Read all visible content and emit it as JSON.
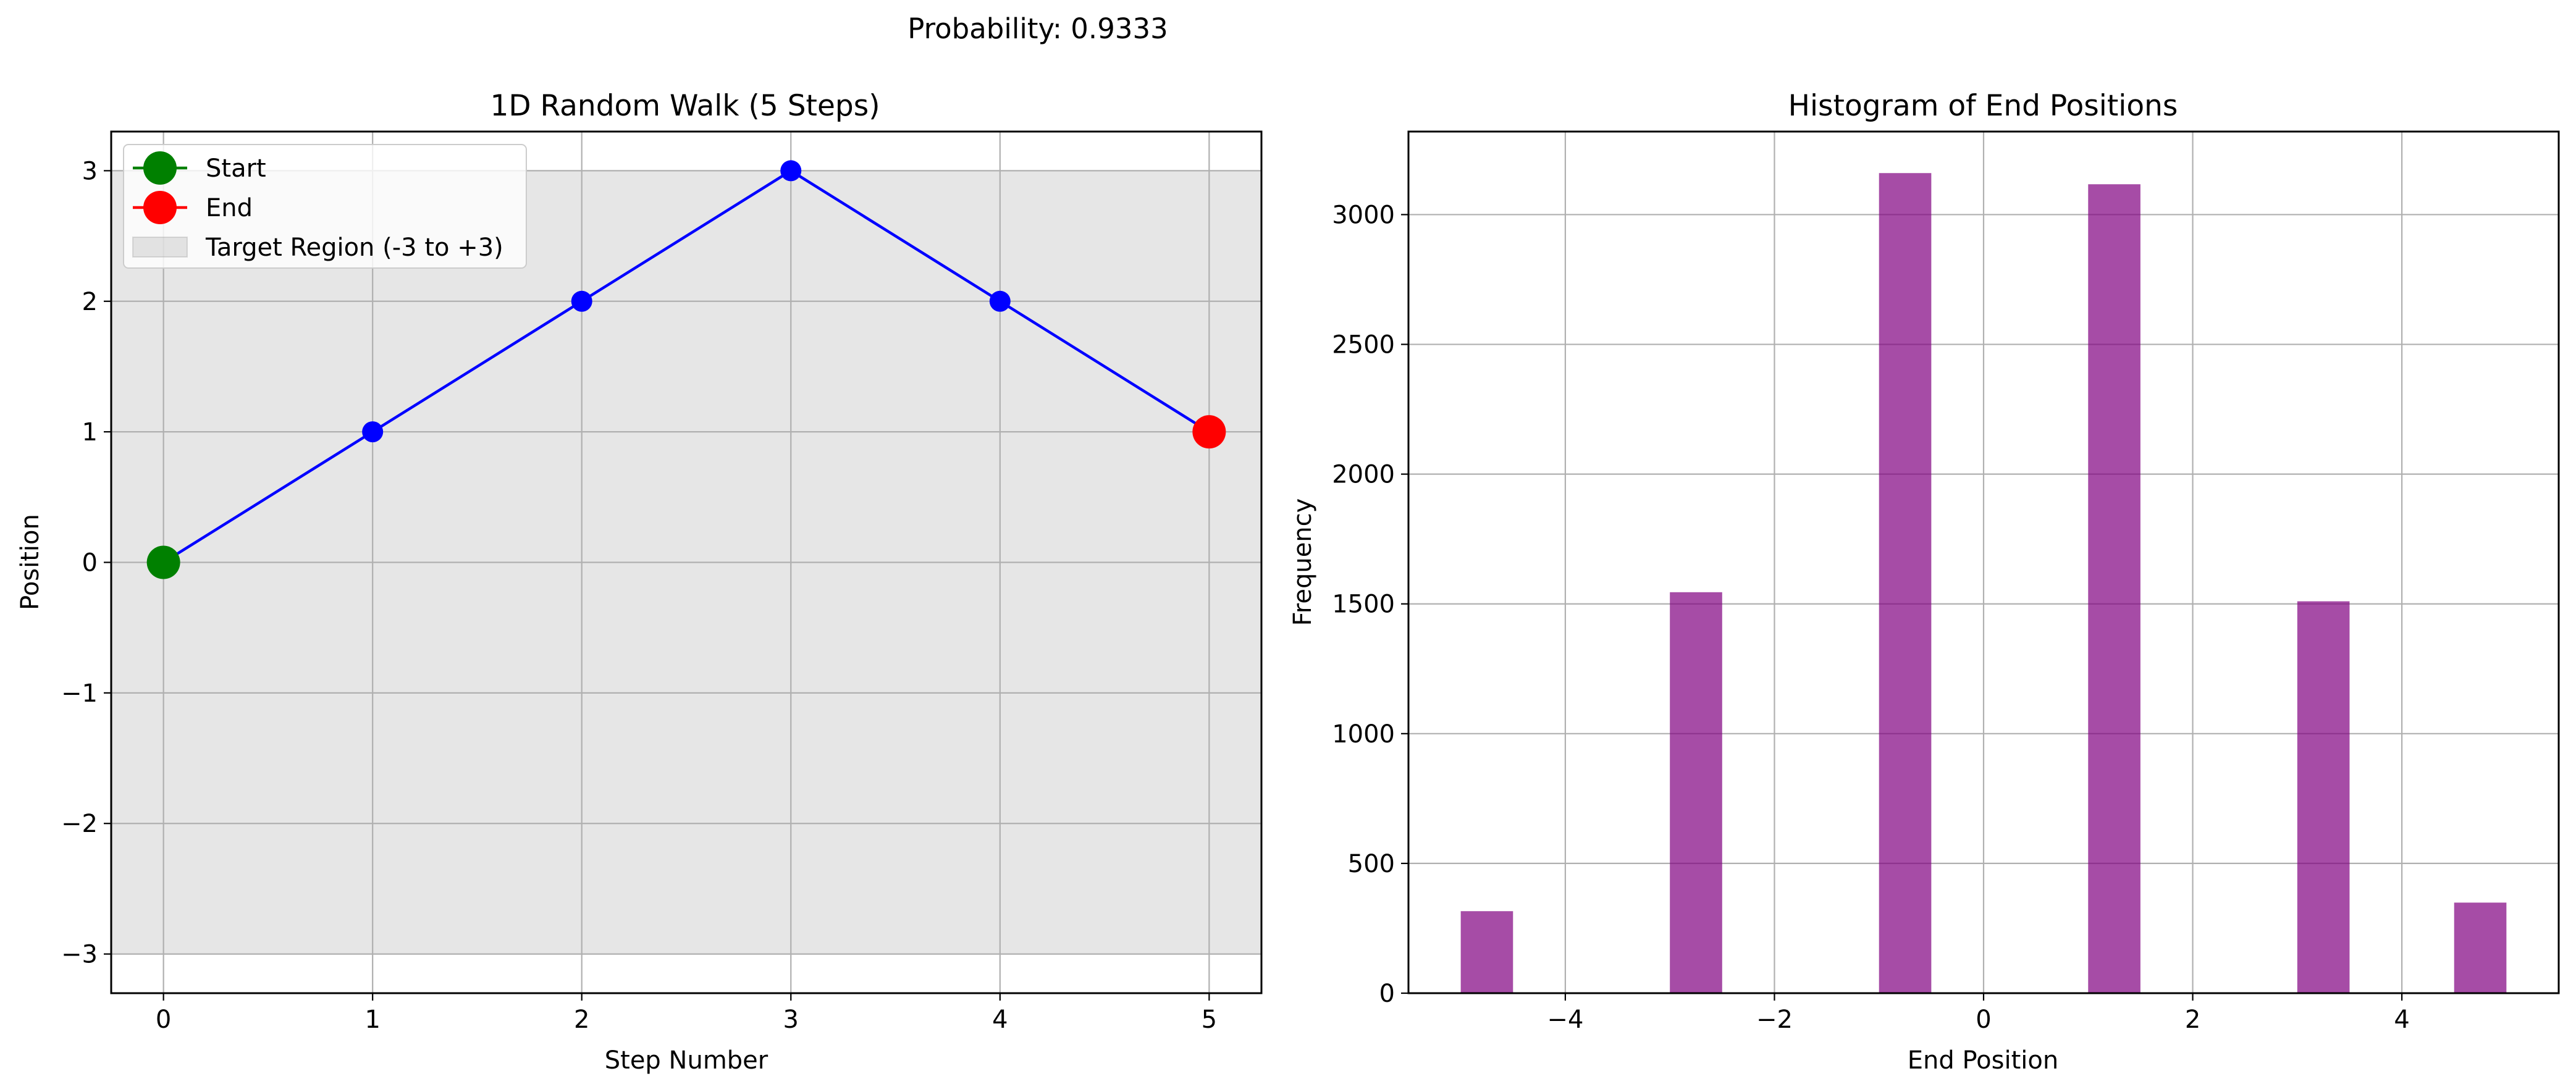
{
  "figure": {
    "suptitle": "Probability: 0.9333"
  },
  "chart_data": [
    {
      "type": "line",
      "title": "1D Random Walk (5 Steps)",
      "xlabel": "Step Number",
      "ylabel": "Position",
      "xlim": [
        -0.25,
        5.25
      ],
      "ylim": [
        -3.3,
        3.3
      ],
      "xticks": [
        0,
        1,
        2,
        3,
        4,
        5
      ],
      "yticks": [
        -3,
        -2,
        -1,
        0,
        1,
        2,
        3
      ],
      "xtick_labels": [
        "0",
        "1",
        "2",
        "3",
        "4",
        "5"
      ],
      "ytick_labels": [
        "−3",
        "−2",
        "−1",
        "0",
        "1",
        "2",
        "3"
      ],
      "grid": true,
      "legend_placement": "upper-left",
      "series": [
        {
          "name": "",
          "x": [
            0,
            1,
            2,
            3,
            4,
            5
          ],
          "y": [
            0,
            1,
            2,
            3,
            2,
            1
          ],
          "color": "#0000ff"
        }
      ],
      "markers": [
        {
          "name": "Start",
          "x": 0,
          "y": 0,
          "color": "#008000"
        },
        {
          "name": "End",
          "x": 5,
          "y": 1,
          "color": "#ff0000"
        }
      ],
      "shaded_region": {
        "name": "Target Region (-3 to +3)",
        "y_from": -3,
        "y_to": 3,
        "color": "#808080"
      },
      "legend": [
        {
          "label": "Start",
          "kind": "line-marker",
          "color": "#008000"
        },
        {
          "label": "End",
          "kind": "line-marker",
          "color": "#ff0000"
        },
        {
          "label": "Target Region (-3 to +3)",
          "kind": "patch",
          "color": "#808080"
        }
      ]
    },
    {
      "type": "bar",
      "title": "Histogram of End Positions",
      "xlabel": "End Position",
      "ylabel": "Frequency",
      "xlim": [
        -5.5,
        5.5
      ],
      "ylim": [
        0,
        3320
      ],
      "xticks": [
        -4,
        -2,
        0,
        2,
        4
      ],
      "yticks": [
        0,
        500,
        1000,
        1500,
        2000,
        2500,
        3000
      ],
      "xtick_labels": [
        "−4",
        "−2",
        "0",
        "2",
        "4"
      ],
      "ytick_labels": [
        "0",
        "500",
        "1000",
        "1500",
        "2000",
        "2500",
        "3000"
      ],
      "grid": true,
      "bar_color": "#800080",
      "bars": [
        {
          "x0": -5.0,
          "x1": -4.5,
          "value": 316
        },
        {
          "x0": -3.0,
          "x1": -2.5,
          "value": 1545
        },
        {
          "x0": -1.0,
          "x1": -0.5,
          "value": 3160
        },
        {
          "x0": 1.0,
          "x1": 1.5,
          "value": 3117
        },
        {
          "x0": 3.0,
          "x1": 3.5,
          "value": 1510
        },
        {
          "x0": 4.5,
          "x1": 5.0,
          "value": 349
        }
      ]
    }
  ]
}
